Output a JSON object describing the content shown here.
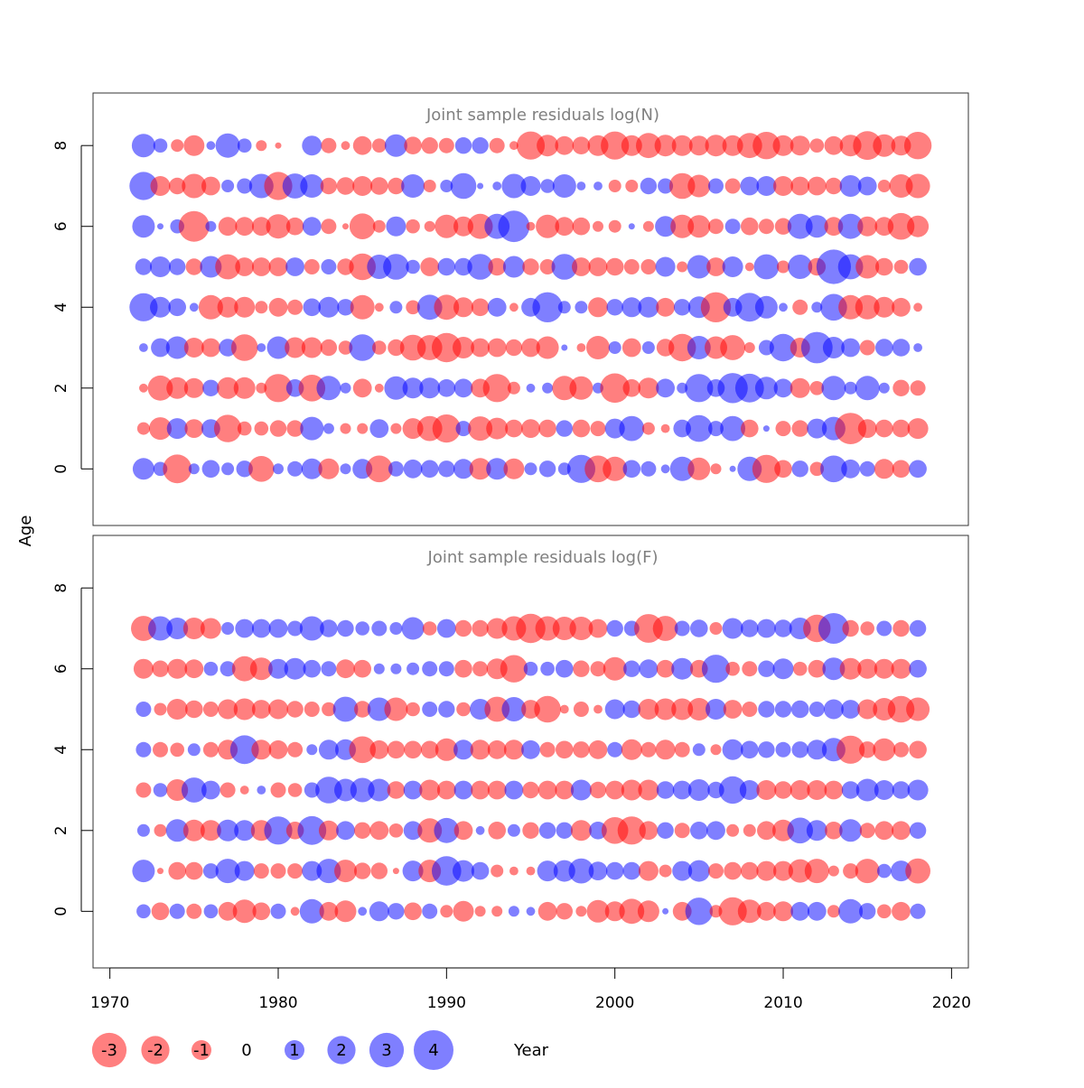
{
  "chart_data": {
    "type": "scatter",
    "xlabel": "Year",
    "ylabel": "Age",
    "xlim": [
      1969,
      2021
    ],
    "xticks": [
      1970,
      1980,
      1990,
      2000,
      2010,
      2020
    ],
    "ylim": [
      -1.4,
      9.3
    ],
    "yticks": [
      0,
      2,
      4,
      6,
      8
    ],
    "grid": false,
    "colors": {
      "negative": "#ff0000",
      "positive": "#0000ff",
      "opacity": 0.5
    },
    "legend": {
      "placement": "bottom",
      "entries": [
        {
          "label": "-3",
          "value": -3
        },
        {
          "label": "-2",
          "value": -2
        },
        {
          "label": "-1",
          "value": -1
        },
        {
          "label": "0",
          "value": 0
        },
        {
          "label": "1",
          "value": 1
        },
        {
          "label": "2",
          "value": 2
        },
        {
          "label": "3",
          "value": 3
        },
        {
          "label": "4",
          "value": 4
        }
      ]
    },
    "years": [
      1972,
      1973,
      1974,
      1975,
      1976,
      1977,
      1978,
      1979,
      1980,
      1981,
      1982,
      1983,
      1984,
      1985,
      1986,
      1987,
      1988,
      1989,
      1990,
      1991,
      1992,
      1993,
      1994,
      1995,
      1996,
      1997,
      1998,
      1999,
      2000,
      2001,
      2002,
      2003,
      2004,
      2005,
      2006,
      2007,
      2008,
      2009,
      2010,
      2011,
      2012,
      2013,
      2014,
      2015,
      2016,
      2017,
      2018
    ],
    "panels": [
      {
        "title": "Joint sample residuals log(N)",
        "ages": [
          0,
          1,
          2,
          3,
          4,
          5,
          6,
          7,
          8
        ],
        "residuals": [
          [
            1.2,
            0.5,
            -2.1,
            0.3,
            0.8,
            0.4,
            0.7,
            -1.7,
            0.3,
            0.6,
            1.1,
            -1.1,
            0.3,
            1.0,
            -1.8,
            0.6,
            0.9,
            0.8,
            0.7,
            1.0,
            -1.2,
            1.2,
            -1.1,
            0.4,
            0.7,
            0.4,
            2.0,
            -1.8,
            -1.5,
            0.8,
            0.6,
            0.2,
            1.5,
            -1.3,
            -0.3,
            0.1,
            1.5,
            -2.0,
            -0.8,
            0.7,
            -0.5,
            1.8,
            0.9,
            0.6,
            -1.0,
            -0.8,
            0.8
          ],
          [
            -0.4,
            -1.3,
            1.1,
            -0.9,
            0.9,
            -1.9,
            -0.5,
            -0.5,
            -0.7,
            -0.7,
            1.4,
            0.3,
            -0.3,
            -0.3,
            0.9,
            -0.3,
            -1.1,
            -1.6,
            -2.0,
            0.6,
            -1.5,
            -1.2,
            -0.8,
            -0.9,
            -0.8,
            0.7,
            -0.8,
            -0.6,
            1.0,
            1.6,
            -0.4,
            -0.2,
            0.8,
            1.8,
            0.6,
            1.6,
            -0.8,
            0.1,
            -0.6,
            -0.7,
            1.0,
            1.4,
            -2.5,
            -0.9,
            -0.8,
            -0.8,
            -1.1
          ],
          [
            -0.2,
            -1.6,
            -1.2,
            -1.0,
            0.7,
            -1.2,
            -1.2,
            -0.3,
            -2.0,
            0.8,
            -1.8,
            1.5,
            0.3,
            -0.9,
            -0.2,
            1.4,
            1.1,
            1.1,
            0.8,
            0.9,
            -0.9,
            -2.0,
            -0.4,
            0.2,
            0.3,
            -1.5,
            -1.4,
            0.3,
            -2.2,
            -0.8,
            -1.1,
            0.9,
            0.3,
            2.0,
            0.8,
            2.3,
            2.1,
            1.3,
            0.9,
            -1.0,
            -0.5,
            1.5,
            0.4,
            1.5,
            0.3,
            -0.7,
            -0.6
          ],
          [
            0.2,
            0.9,
            1.3,
            -1.0,
            -0.9,
            0.8,
            -1.8,
            0.2,
            1.3,
            -1.1,
            -1.1,
            -0.7,
            -0.5,
            1.8,
            -0.5,
            -0.7,
            -1.7,
            -1.6,
            -2.2,
            -1.2,
            -0.9,
            -0.9,
            -0.7,
            -0.9,
            -1.3,
            0.1,
            -0.2,
            -1.4,
            0.4,
            -0.9,
            0.4,
            -0.8,
            -1.9,
            1.4,
            -1.3,
            -1.6,
            -0.3,
            0.6,
            1.9,
            -1.0,
            2.5,
            1.2,
            0.9,
            -0.6,
            0.8,
            0.8,
            0.2
          ],
          [
            2.0,
            1.1,
            0.8,
            0.2,
            -1.5,
            -1.1,
            -1.1,
            -0.4,
            -0.9,
            -0.6,
            0.8,
            1.1,
            0.7,
            -1.5,
            -0.2,
            0.4,
            -0.5,
            1.6,
            -1.6,
            -1.0,
            -0.8,
            0.9,
            -0.2,
            0.9,
            2.3,
            0.4,
            0.4,
            -1.0,
            0.7,
            1.0,
            1.1,
            -0.9,
            0.7,
            1.2,
            -2.3,
            0.9,
            2.1,
            1.3,
            0.2,
            -0.6,
            0.3,
            1.8,
            -1.5,
            -1.5,
            -1.1,
            -0.9,
            -0.2
          ],
          [
            0.7,
            1.1,
            0.7,
            -0.7,
            1.2,
            -1.6,
            -0.9,
            -0.9,
            -0.9,
            0.9,
            -0.6,
            0.6,
            -0.7,
            -1.8,
            1.5,
            1.7,
            0.5,
            -0.9,
            0.8,
            0.8,
            1.7,
            -0.8,
            1.2,
            -0.7,
            -0.6,
            1.7,
            -0.9,
            -0.9,
            -0.8,
            -0.6,
            -0.6,
            1.0,
            -0.3,
            1.4,
            -0.9,
            1.1,
            -0.2,
            1.6,
            -0.4,
            1.5,
            -0.8,
            3.0,
            1.6,
            -1.4,
            -0.8,
            -0.5,
            0.8
          ],
          [
            1.3,
            0.1,
            0.5,
            -2.4,
            0.3,
            -0.9,
            -0.9,
            -0.9,
            -1.5,
            -0.8,
            0.9,
            -0.6,
            -0.1,
            -1.7,
            -0.4,
            1.0,
            -0.5,
            -0.3,
            -1.4,
            -1.0,
            -1.6,
            1.6,
            2.5,
            -0.2,
            -1.4,
            -0.9,
            -0.8,
            -0.3,
            -0.4,
            0.1,
            -0.3,
            1.1,
            -1.4,
            -1.3,
            -0.6,
            0.6,
            -0.8,
            -0.6,
            -0.7,
            1.6,
            1.3,
            -0.9,
            1.6,
            -1.0,
            -0.9,
            -1.8,
            -1.2
          ],
          [
            2.0,
            -1.0,
            -0.7,
            -1.5,
            -0.9,
            0.4,
            0.6,
            1.5,
            -2.0,
            1.6,
            1.4,
            -0.7,
            -0.8,
            -1.0,
            -0.8,
            -0.7,
            1.4,
            -0.4,
            0.4,
            1.7,
            0.1,
            0.2,
            1.5,
            1.0,
            0.5,
            1.4,
            0.2,
            0.2,
            -0.4,
            -0.4,
            0.7,
            0.6,
            -1.7,
            -1.3,
            0.6,
            -0.6,
            0.9,
            1.0,
            -1.0,
            -0.9,
            -0.9,
            -0.7,
            1.2,
            0.9,
            -0.4,
            -1.4,
            -1.5
          ],
          [
            1.4,
            0.5,
            -0.4,
            -1.1,
            0.2,
            1.5,
            0.5,
            -0.3,
            -0.1,
            0.0,
            1.0,
            -0.6,
            -0.2,
            -0.9,
            -0.5,
            1.3,
            -0.8,
            -0.7,
            -0.6,
            0.7,
            0.7,
            -0.6,
            -0.2,
            -2.0,
            -1.2,
            -0.9,
            -0.8,
            -1.1,
            -2.0,
            -1.1,
            -1.6,
            -1.2,
            -1.1,
            -1.0,
            -1.2,
            -1.1,
            -1.6,
            -1.9,
            -1.1,
            -1.0,
            -0.5,
            -0.9,
            -1.2,
            -2.1,
            -1.3,
            -1.0,
            -1.9
          ]
        ]
      },
      {
        "title": "Joint sample residuals log(F)",
        "ages": [
          0,
          1,
          2,
          3,
          4,
          5,
          6,
          7
        ],
        "residuals": [
          [
            0.5,
            -0.8,
            0.6,
            -0.6,
            0.5,
            -0.9,
            -1.4,
            -0.8,
            0.6,
            -0.2,
            1.5,
            -0.9,
            -1.2,
            0.2,
            1.0,
            0.7,
            -0.8,
            0.6,
            -0.4,
            -1.1,
            -0.3,
            -0.3,
            0.3,
            0.2,
            -0.9,
            -0.7,
            -0.3,
            -1.3,
            -1.0,
            -1.6,
            -1.2,
            0.1,
            -0.9,
            1.9,
            -0.4,
            -2.0,
            -1.4,
            -0.9,
            -1.0,
            0.9,
            0.9,
            -0.4,
            1.5,
            0.7,
            -0.5,
            -0.9,
            0.6
          ],
          [
            1.3,
            -0.1,
            -0.8,
            -0.8,
            0.6,
            1.5,
            1.0,
            -0.6,
            -0.6,
            -0.6,
            1.0,
            1.5,
            -1.3,
            -0.7,
            -0.7,
            -0.1,
            1.1,
            -1.3,
            2.2,
            1.2,
            0.8,
            -0.4,
            -0.2,
            -0.2,
            1.1,
            1.2,
            1.6,
            0.9,
            0.8,
            0.8,
            -1.0,
            -0.4,
            1.0,
            1.2,
            -0.6,
            -0.8,
            -0.8,
            -1.0,
            -1.0,
            -1.4,
            -1.5,
            -0.3,
            -0.6,
            -1.5,
            0.5,
            1.1,
            -1.6
          ],
          [
            0.4,
            -0.4,
            1.3,
            -1.2,
            -1.1,
            1.2,
            1.1,
            -1.1,
            2.0,
            -0.8,
            2.1,
            -1.0,
            0.9,
            -0.7,
            -0.9,
            -0.5,
            0.9,
            -1.5,
            1.6,
            -0.9,
            0.2,
            -0.8,
            0.4,
            -0.7,
            0.7,
            0.7,
            -1.1,
            0.8,
            -1.8,
            -2.0,
            -0.9,
            0.7,
            -0.6,
            0.8,
            0.9,
            -0.4,
            -0.4,
            -0.9,
            -1.2,
            1.7,
            1.1,
            -0.8,
            1.3,
            -0.6,
            -0.9,
            -0.9,
            0.7
          ],
          [
            -0.6,
            0.5,
            -1.2,
            1.6,
            0.9,
            -0.6,
            -0.2,
            0.2,
            -0.6,
            -0.5,
            0.6,
            1.8,
            1.3,
            1.5,
            1.3,
            -0.8,
            0.9,
            -1.1,
            -0.9,
            0.9,
            -0.9,
            -0.9,
            0.9,
            -0.7,
            -0.9,
            -0.9,
            1.1,
            -0.7,
            -0.9,
            -1.1,
            -1.1,
            0.8,
            0.9,
            1.2,
            0.7,
            1.9,
            1.0,
            -1.0,
            -0.8,
            -1.0,
            -1.0,
            -0.9,
            0.8,
            1.3,
            1.0,
            0.8,
            1.1
          ],
          [
            0.6,
            -0.6,
            -0.5,
            0.4,
            -0.6,
            -1.0,
            2.1,
            -1.0,
            -0.9,
            -0.6,
            0.3,
            1.0,
            1.1,
            -1.8,
            -0.9,
            -0.8,
            -0.8,
            -0.8,
            -1.3,
            1.0,
            -1.0,
            -0.9,
            -1.0,
            0.9,
            -0.6,
            -0.8,
            -0.7,
            -0.9,
            0.6,
            -1.1,
            -0.6,
            -1.0,
            -0.6,
            0.4,
            -0.3,
            1.1,
            0.8,
            0.7,
            0.6,
            0.7,
            1.0,
            1.4,
            -2.0,
            -0.7,
            -1.3,
            -0.6,
            -0.8
          ],
          [
            0.6,
            -0.4,
            -1.1,
            -0.8,
            -0.6,
            -1.0,
            -1.2,
            -0.9,
            -1.0,
            -0.7,
            -0.6,
            -0.5,
            1.6,
            -0.7,
            1.4,
            -1.4,
            -0.5,
            0.6,
            0.7,
            -0.5,
            1.1,
            -1.6,
            1.5,
            -0.9,
            -1.8,
            -0.2,
            -0.6,
            -0.2,
            1.0,
            0.8,
            -1.1,
            -1.2,
            -1.2,
            -1.3,
            1.1,
            -0.9,
            -0.6,
            0.7,
            0.7,
            0.8,
            0.6,
            1.0,
            0.9,
            -1.0,
            -1.3,
            -1.8,
            -1.4
          ],
          [
            -1.0,
            -0.7,
            -1.0,
            -0.9,
            0.5,
            0.6,
            -1.6,
            -1.3,
            1.0,
            1.2,
            0.8,
            0.6,
            -0.9,
            -0.8,
            0.3,
            0.3,
            0.4,
            0.6,
            0.6,
            -0.8,
            -0.6,
            -1.1,
            -1.9,
            0.5,
            0.5,
            0.8,
            -0.7,
            -0.6,
            -1.4,
            0.7,
            0.9,
            -0.8,
            1.2,
            -0.8,
            2.0,
            -0.5,
            -0.6,
            0.7,
            1.1,
            -0.5,
            -0.8,
            1.3,
            -1.2,
            -1.0,
            -1.0,
            -1.0,
            0.8
          ],
          [
            -1.6,
            1.5,
            1.2,
            -1.2,
            -1.1,
            0.4,
            0.9,
            0.9,
            0.9,
            0.6,
            1.5,
            0.8,
            0.7,
            0.5,
            0.6,
            0.4,
            1.3,
            -0.5,
            0.9,
            -0.7,
            -0.7,
            -1.1,
            -1.5,
            -2.2,
            -1.5,
            -1.4,
            -1.4,
            -0.9,
            0.7,
            0.6,
            -2.1,
            -1.6,
            0.6,
            0.8,
            -0.4,
            1.1,
            0.8,
            0.9,
            0.8,
            1.2,
            -1.9,
            2.4,
            -0.7,
            -0.5,
            0.6,
            -0.7,
            0.7
          ]
        ]
      }
    ]
  }
}
